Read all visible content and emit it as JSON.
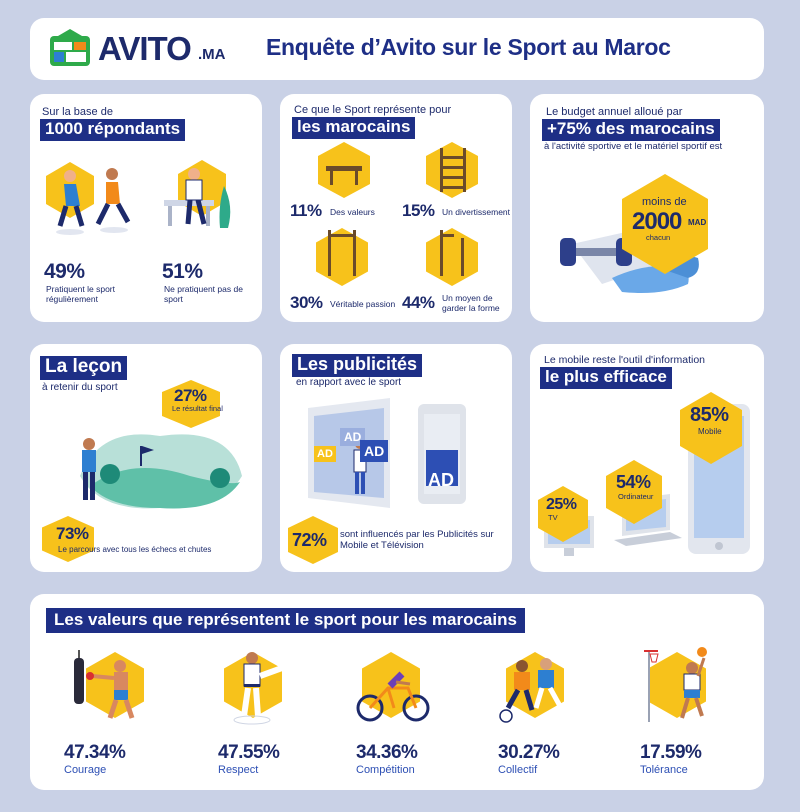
{
  "header": {
    "logo_text": "AVITO",
    "logo_suffix": ".MA",
    "title": "Enquête d’Avito sur le Sport au Maroc"
  },
  "respondents": {
    "pre": "Sur la base de",
    "highlight": "1000 répondants",
    "stat1": {
      "value": "49%",
      "label": "Pratiquent le sport régulièrement"
    },
    "stat2": {
      "value": "51%",
      "label": "Ne pratiquent pas de sport"
    }
  },
  "represents": {
    "pre": "Ce que le Sport représente pour",
    "highlight": "les marocains",
    "items": [
      {
        "value": "11%",
        "label": "Des valeurs"
      },
      {
        "value": "15%",
        "label": "Un divertissement"
      },
      {
        "value": "30%",
        "label": "Véritable passion"
      },
      {
        "value": "44%",
        "label": "Un moyen de garder la forme"
      }
    ]
  },
  "budget": {
    "pre": "Le budget annuel alloué par",
    "highlight": "+75% des marocains",
    "post": "à l'activité sportive et le matériel sportif est",
    "hex_top": "moins de",
    "hex_amount": "2000",
    "hex_currency": "MAD",
    "hex_bottom": "chacun"
  },
  "lesson": {
    "title": "La leçon",
    "subtitle": "à retenir du sport",
    "stat1": {
      "value": "27%",
      "label": "Le résultat final"
    },
    "stat2": {
      "value": "73%",
      "label": "Le parcours avec tous les échecs et chutes"
    }
  },
  "ads": {
    "title": "Les publicités",
    "subtitle": "en rapport avec le sport",
    "ad_text": "AD",
    "stat": {
      "value": "72%",
      "label": "sont influencés par les Publicités sur Mobile et Télévision"
    }
  },
  "mobile": {
    "pre": "Le mobile reste l'outil d'information",
    "highlight": "le plus efficace",
    "devices": [
      {
        "value": "85%",
        "label": "Mobile"
      },
      {
        "value": "54%",
        "label": "Ordinateur"
      },
      {
        "value": "25%",
        "label": "TV"
      }
    ]
  },
  "values": {
    "title": "Les valeurs que représentent le sport pour les marocains",
    "items": [
      {
        "value": "47.34%",
        "label": "Courage"
      },
      {
        "value": "47.55%",
        "label": "Respect"
      },
      {
        "value": "34.36%",
        "label": "Compétition"
      },
      {
        "value": "30.27%",
        "label": "Collectif"
      },
      {
        "value": "17.59%",
        "label": "Tolérance"
      }
    ]
  },
  "colors": {
    "background": "#c9d1e6",
    "navy": "#1e2f86",
    "yellow": "#f7c21b",
    "orange": "#f28a1a"
  }
}
